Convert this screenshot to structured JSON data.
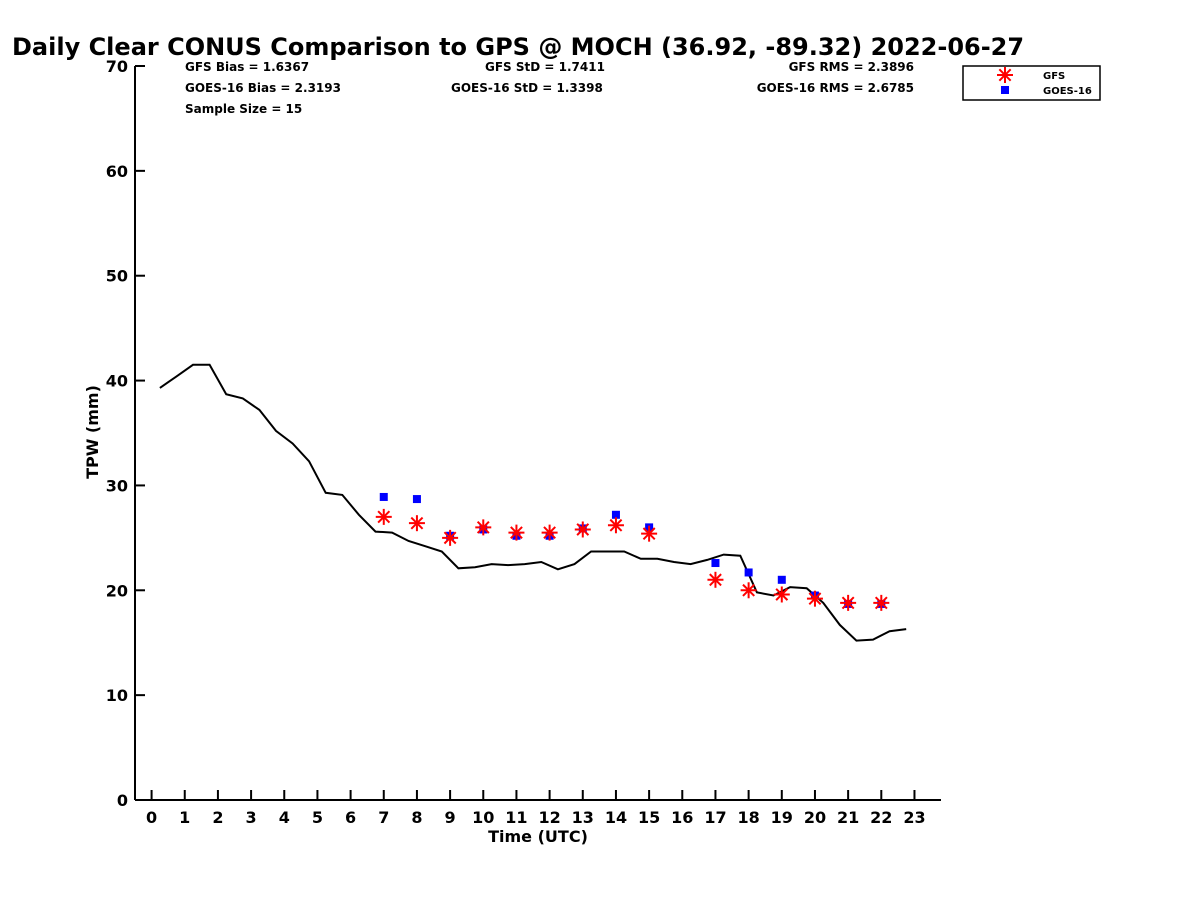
{
  "chart_data": {
    "type": "scatter",
    "title": "Daily Clear CONUS Comparison to GPS @ MOCH (36.92, -89.32) 2022-06-27",
    "xlabel": "Time (UTC)",
    "ylabel": "TPW (mm)",
    "xlim": [
      -0.5,
      23.8
    ],
    "ylim": [
      0,
      70
    ],
    "x_ticks": [
      "0",
      "1",
      "2",
      "3",
      "4",
      "5",
      "6",
      "7",
      "8",
      "9",
      "10",
      "11",
      "12",
      "13",
      "14",
      "15",
      "16",
      "17",
      "18",
      "19",
      "20",
      "21",
      "22",
      "23"
    ],
    "y_ticks": [
      "0",
      "10",
      "20",
      "30",
      "40",
      "50",
      "60",
      "70"
    ],
    "grid": false,
    "legend_position": "top-right",
    "stats": {
      "gfs_bias": "GFS Bias = 1.6367",
      "goes_bias": "GOES-16 Bias = 2.3193",
      "sample_size": "Sample Size = 15",
      "gfs_std": "GFS StD = 1.7411",
      "goes_std": "GOES-16 StD = 1.3398",
      "gfs_rms": "GFS RMS = 2.3896",
      "goes_rms": "GOES-16 RMS = 2.6785"
    },
    "series": [
      {
        "name": "GFS",
        "marker": "asterisk",
        "color": "#ff0000",
        "x": [
          7,
          8,
          9,
          10,
          11,
          12,
          13,
          14,
          15,
          17,
          18,
          19,
          20,
          21,
          22
        ],
        "y": [
          27.0,
          26.4,
          25.0,
          26.0,
          25.5,
          25.5,
          25.8,
          26.2,
          25.4,
          21.0,
          20.0,
          19.6,
          19.2,
          18.8,
          18.8
        ]
      },
      {
        "name": "GOES-16",
        "marker": "square",
        "color": "#0000ff",
        "x": [
          7,
          8,
          9,
          10,
          11,
          12,
          13,
          14,
          15,
          17,
          18,
          19,
          20,
          21,
          22
        ],
        "y": [
          28.9,
          28.7,
          25.2,
          25.8,
          25.2,
          25.2,
          25.9,
          27.2,
          26.0,
          22.6,
          21.7,
          21.0,
          19.5,
          18.7,
          18.7
        ]
      },
      {
        "name": "GPS",
        "marker": "line",
        "color": "#000000",
        "x": [
          0.25,
          0.75,
          1.25,
          1.75,
          2.25,
          2.75,
          3.25,
          3.75,
          4.25,
          4.75,
          5.25,
          5.75,
          6.25,
          6.75,
          7.25,
          7.75,
          8.25,
          8.75,
          9.25,
          9.75,
          10.25,
          10.75,
          11.25,
          11.75,
          12.25,
          12.75,
          13.25,
          13.75,
          14.25,
          14.75,
          15.25,
          15.75,
          16.25,
          16.75,
          17.25,
          17.75,
          18.25,
          18.75,
          19.25,
          19.75,
          20.25,
          20.75,
          21.25,
          21.75,
          22.25,
          22.75
        ],
        "y": [
          39.3,
          40.4,
          41.5,
          41.5,
          38.7,
          38.3,
          37.2,
          35.2,
          34.0,
          32.3,
          29.3,
          29.1,
          27.2,
          25.6,
          25.5,
          24.7,
          24.2,
          23.7,
          22.1,
          22.2,
          22.5,
          22.4,
          22.5,
          22.7,
          22.0,
          22.5,
          23.7,
          23.7,
          23.7,
          23.0,
          23.0,
          22.7,
          22.5,
          22.9,
          23.4,
          23.3,
          19.8,
          19.5,
          20.3,
          20.2,
          18.8,
          16.7,
          15.2,
          15.3,
          16.1,
          16.3
        ]
      }
    ]
  }
}
